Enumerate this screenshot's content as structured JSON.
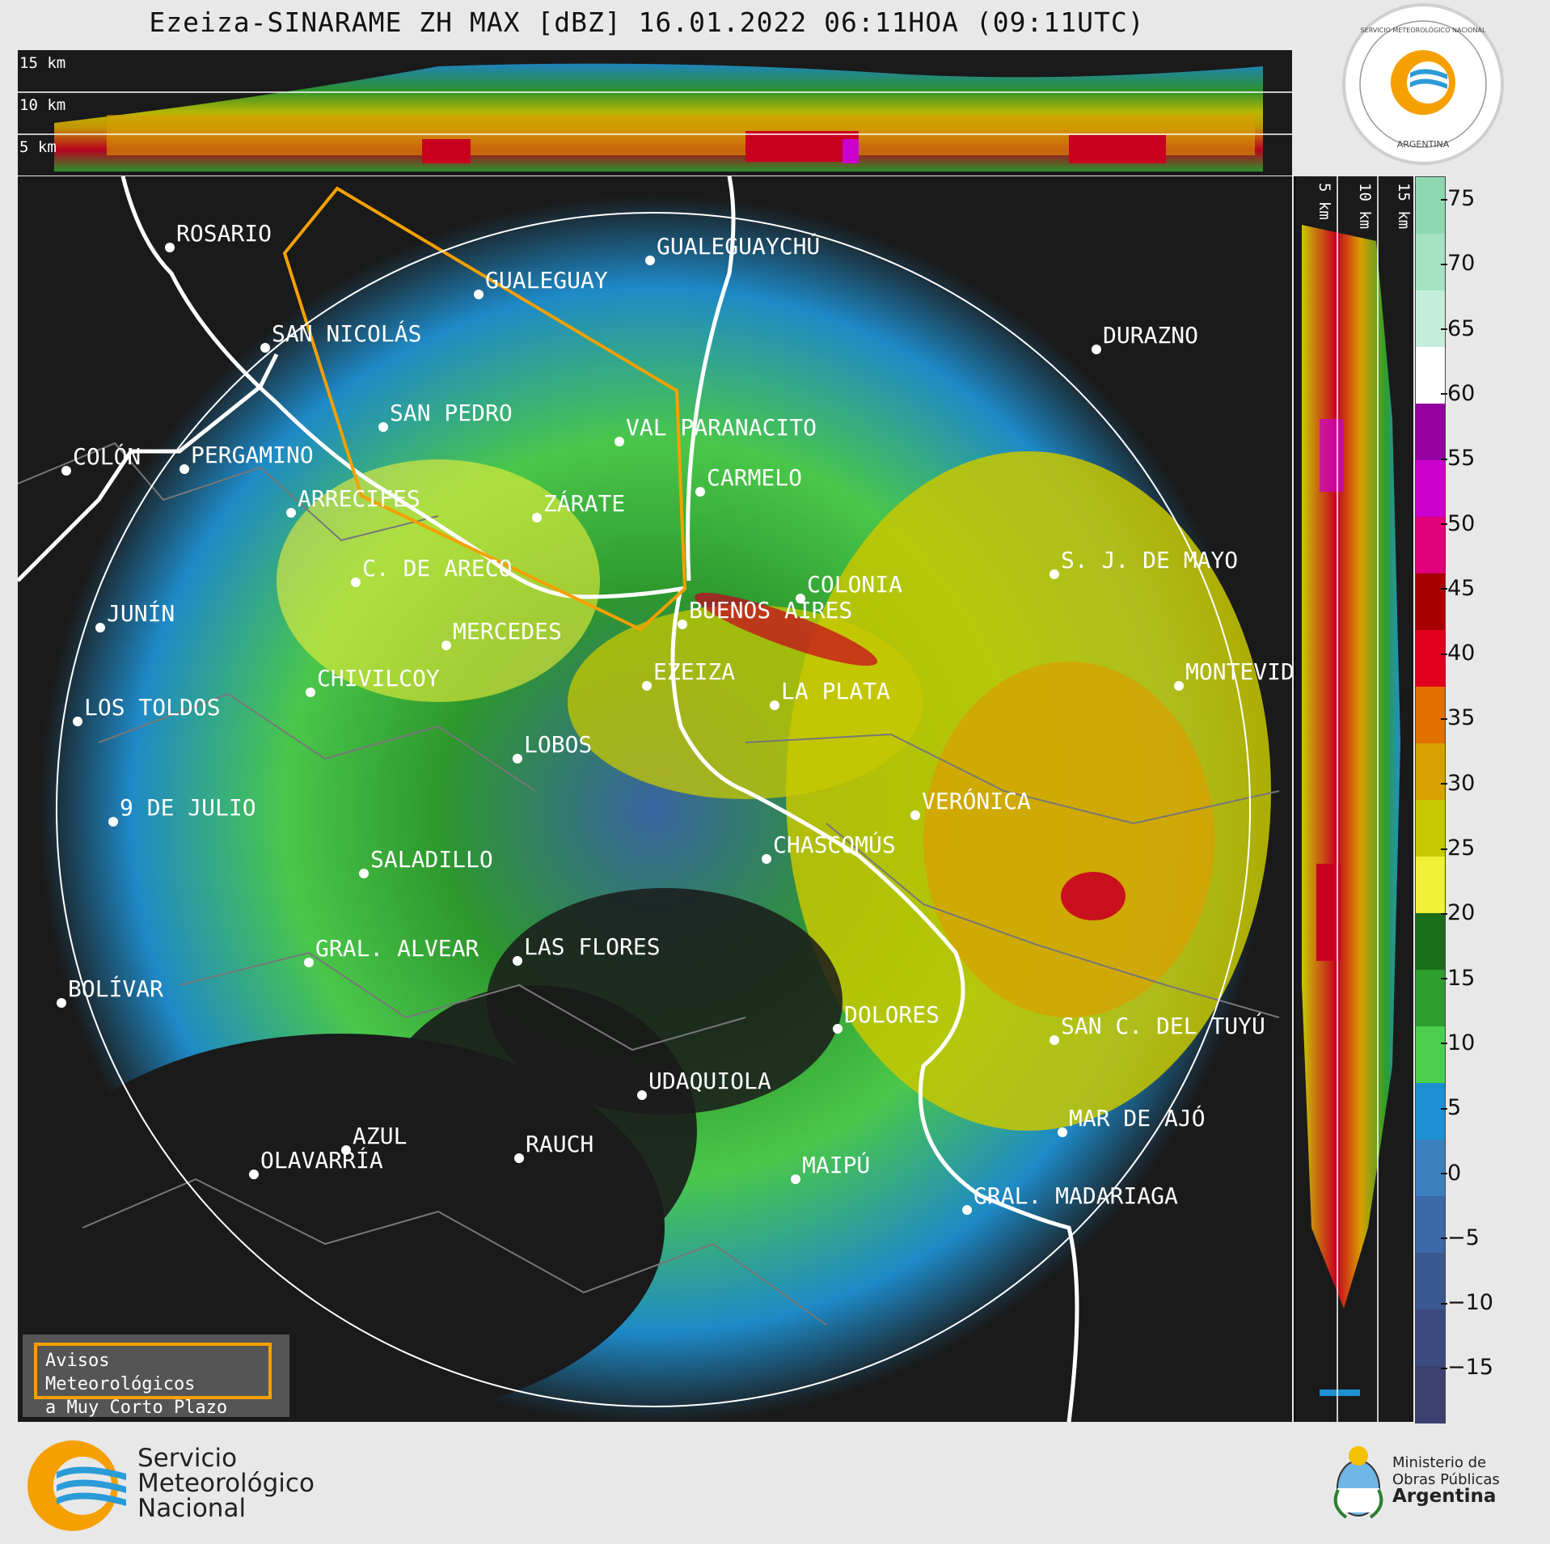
{
  "title": "Ezeiza-SINARAME ZH MAX [dBZ] 16.01.2022 06:11HOA (09:11UTC)",
  "top_panel": {
    "heights": [
      "15 km",
      "10 km",
      "5 km"
    ]
  },
  "side_panel": {
    "heights": [
      "5 km",
      "10 km",
      "15 km"
    ]
  },
  "colorbar": {
    "ticks": [
      "75",
      "70",
      "65",
      "60",
      "55",
      "50",
      "45",
      "40",
      "35",
      "30",
      "25",
      "20",
      "15",
      "10",
      "5",
      "0",
      "−5",
      "−10",
      "−15"
    ],
    "colors": [
      "#8ed8b0",
      "#a6e2c4",
      "#c4eedb",
      "#ffffff",
      "#9400a0",
      "#cc00cc",
      "#e0007a",
      "#a80000",
      "#e0001e",
      "#e07000",
      "#d8a000",
      "#c8c800",
      "#f0f038",
      "#1a6e1a",
      "#2e9e2e",
      "#4cd04c",
      "#1e8fd0",
      "#3a80c0",
      "#3a68a8",
      "#3a5890",
      "#3a4a80",
      "#3a4070"
    ]
  },
  "cities": [
    {
      "name": "ROSARIO"
    },
    {
      "name": "GUALEGUAYCHÚ"
    },
    {
      "name": "GUALEGUAY"
    },
    {
      "name": "SAN NICOLÁS"
    },
    {
      "name": "DURAZNO"
    },
    {
      "name": "SAN PEDRO"
    },
    {
      "name": "VAL PARANACITO"
    },
    {
      "name": "COLÓN"
    },
    {
      "name": "PERGAMINO"
    },
    {
      "name": "CARMELO"
    },
    {
      "name": "ARRECIFES"
    },
    {
      "name": "ZÁRATE"
    },
    {
      "name": "S. J. DE MAYO"
    },
    {
      "name": "C. DE ARECO"
    },
    {
      "name": "COLONIA"
    },
    {
      "name": "JUNÍN"
    },
    {
      "name": "BUENOS AIRES"
    },
    {
      "name": "MERCEDES"
    },
    {
      "name": "MONTEVIDEO"
    },
    {
      "name": "CHIVILCOY"
    },
    {
      "name": "EZEIZA"
    },
    {
      "name": "LA PLATA"
    },
    {
      "name": "LOS TOLDOS"
    },
    {
      "name": "LOBOS"
    },
    {
      "name": "VERÓNICA"
    },
    {
      "name": "9 DE JULIO"
    },
    {
      "name": "CHASCOMÚS"
    },
    {
      "name": "SALADILLO"
    },
    {
      "name": "GRAL. ALVEAR"
    },
    {
      "name": "LAS FLORES"
    },
    {
      "name": "BOLÍVAR"
    },
    {
      "name": "DOLORES"
    },
    {
      "name": "SAN C. DEL TUYÚ"
    },
    {
      "name": "UDAQUIOLA"
    },
    {
      "name": "MAR DE AJÓ"
    },
    {
      "name": "AZUL"
    },
    {
      "name": "RAUCH"
    },
    {
      "name": "OLAVARRÍA"
    },
    {
      "name": "MAIPÚ"
    },
    {
      "name": "GRAL. MADARIAGA"
    }
  ],
  "warning_box": {
    "line1": "Avisos Meteorológicos",
    "line2": "a Muy Corto Plazo"
  },
  "seal": {
    "top_text": "SERVICIO METEOROLÓGICO NACIONAL",
    "bottom_text": "ARGENTINA"
  },
  "footer": {
    "logo_line1": "Servicio",
    "logo_line2": "Meteorológico",
    "logo_line3": "Nacional",
    "ministry_line1": "Ministerio de",
    "ministry_line2": "Obras Públicas",
    "ministry_line3": "Argentina"
  }
}
